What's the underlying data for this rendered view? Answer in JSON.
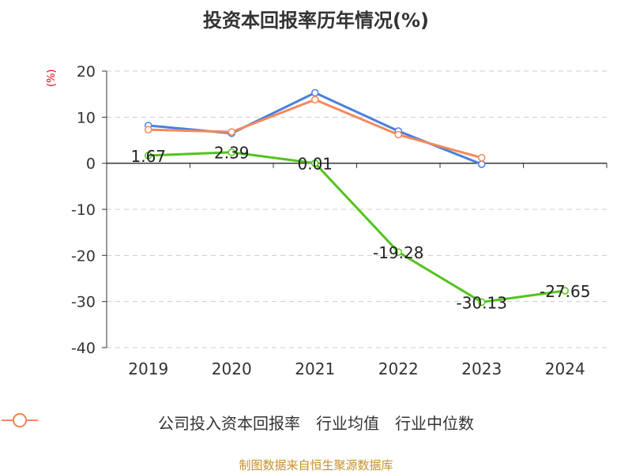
{
  "chart_data": {
    "type": "line",
    "title": "投资本回报率历年情况(%)",
    "ylabel": "(%)",
    "ylim": [
      -40,
      20
    ],
    "yticks": [
      "20",
      "10",
      "0",
      "-10",
      "-20",
      "-30",
      "-40"
    ],
    "grid": true,
    "legend_position": "bottom",
    "categories": [
      "2019",
      "2020",
      "2021",
      "2022",
      "2023",
      "2024"
    ],
    "series": [
      {
        "name": "公司投入资本回报率",
        "color": "#52c41a",
        "values": [
          1.67,
          2.39,
          0.01,
          -19.28,
          -30.13,
          -27.65
        ],
        "labels": [
          "1.67",
          "2.39",
          "0.01",
          "-19.28",
          "-30.13",
          "-27.65"
        ]
      },
      {
        "name": "行业均值",
        "color": "#4a7fe0",
        "values": [
          8.2,
          6.5,
          15.3,
          7.0,
          -0.2,
          null
        ]
      },
      {
        "name": "行业中位数",
        "color": "#f5895a",
        "values": [
          7.3,
          6.8,
          13.8,
          6.2,
          1.2,
          null
        ]
      }
    ]
  },
  "footer": {
    "source": "制图数据来自恒生聚源数据库"
  }
}
